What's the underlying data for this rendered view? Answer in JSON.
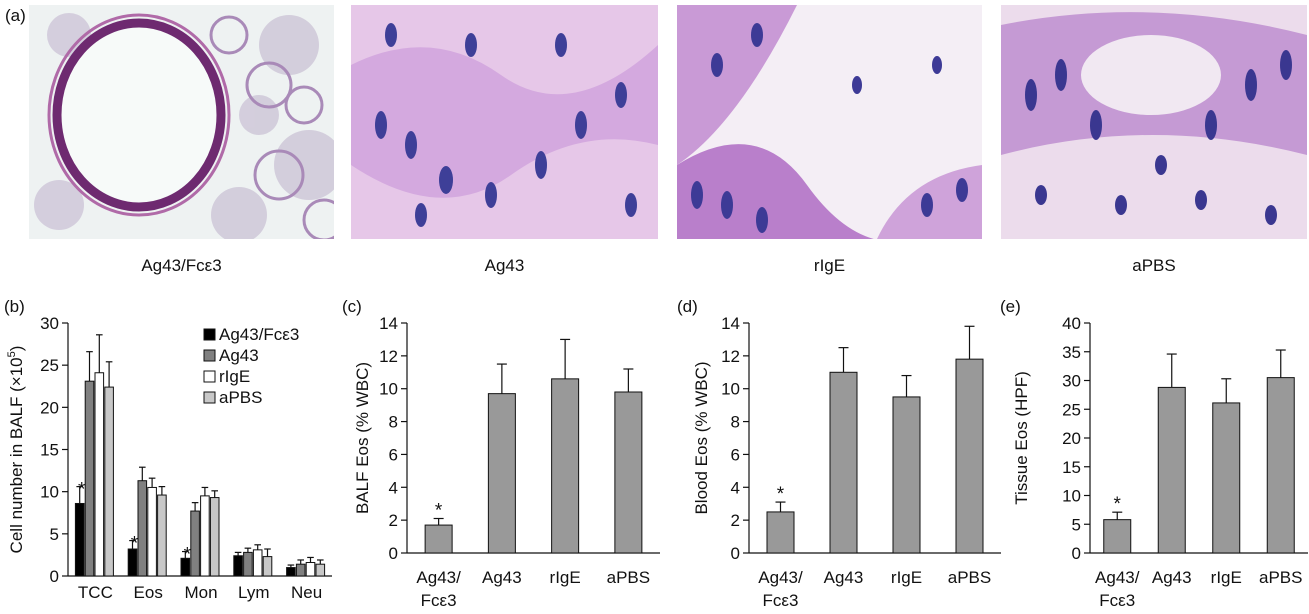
{
  "panel_labels": {
    "a": "(a)",
    "b": "(b)",
    "c": "(c)",
    "d": "(d)",
    "e": "(e)"
  },
  "micrographs": [
    {
      "caption": "Ag43/Fcε3",
      "tissue_color": "#7a2f78",
      "bg_color": "#eef2f2"
    },
    {
      "caption": "Ag43",
      "tissue_color": "#b27ac9",
      "bg_color": "#e6c7e8"
    },
    {
      "caption": "rIgE",
      "tissue_color": "#ae79c7",
      "bg_color": "#f4eef5"
    },
    {
      "caption": "aPBS",
      "tissue_color": "#7c58b8",
      "bg_color": "#ecdcec"
    }
  ],
  "chart_data": [
    {
      "panel": "(b)",
      "type": "bar",
      "ylabel_main": "Cell number in BALF (×10",
      "ylabel_sup": "5",
      "ylabel_end": ")",
      "ylim": [
        0,
        30
      ],
      "yticks": [
        0,
        5,
        10,
        15,
        20,
        25,
        30
      ],
      "categories": [
        "TCC",
        "Eos",
        "Mon",
        "Lym",
        "Neu"
      ],
      "legend_position": "top-right",
      "series": [
        {
          "name": "Ag43/Fcε3",
          "color": "#000000",
          "values": [
            8.6,
            3.2,
            2.1,
            2.4,
            1.0
          ],
          "errors": [
            2.0,
            1.0,
            0.8,
            0.4,
            0.3
          ]
        },
        {
          "name": "Ag43",
          "color": "#808080",
          "values": [
            23.1,
            11.3,
            7.7,
            2.8,
            1.4
          ],
          "errors": [
            3.5,
            1.6,
            1.0,
            0.5,
            0.5
          ]
        },
        {
          "name": "rIgE",
          "color": "#ffffff",
          "values": [
            24.1,
            10.5,
            9.5,
            3.1,
            1.6
          ],
          "errors": [
            4.5,
            1.1,
            1.0,
            0.6,
            0.6
          ]
        },
        {
          "name": "aPBS",
          "color": "#c8c8c8",
          "values": [
            22.4,
            9.6,
            9.3,
            2.3,
            1.4
          ],
          "errors": [
            3.0,
            1.0,
            0.8,
            0.9,
            0.5
          ]
        }
      ],
      "annotations": [
        {
          "category": "TCC",
          "series": "Ag43/Fcε3",
          "text": "*"
        },
        {
          "category": "Eos",
          "series": "Ag43/Fcε3",
          "text": "*"
        },
        {
          "category": "Mon",
          "series": "Ag43/Fcε3",
          "text": "*"
        }
      ]
    },
    {
      "panel": "(c)",
      "type": "bar",
      "ylabel": "BALF Eos (% WBC)",
      "ylim": [
        0,
        14
      ],
      "yticks": [
        0,
        2,
        4,
        6,
        8,
        10,
        12,
        14
      ],
      "categories": [
        "Ag43/\nFcε3",
        "Ag43",
        "rIgE",
        "aPBS"
      ],
      "values": [
        1.7,
        9.7,
        10.6,
        9.8
      ],
      "errors": [
        0.4,
        1.8,
        2.4,
        1.4
      ],
      "bar_color": "#999999",
      "annotations": [
        {
          "category": 0,
          "text": "*"
        }
      ]
    },
    {
      "panel": "(d)",
      "type": "bar",
      "ylabel": "Blood Eos (% WBC)",
      "ylim": [
        0,
        14
      ],
      "yticks": [
        0,
        2,
        4,
        6,
        8,
        10,
        12,
        14
      ],
      "categories": [
        "Ag43/\nFcε3",
        "Ag43",
        "rIgE",
        "aPBS"
      ],
      "values": [
        2.5,
        11.0,
        9.5,
        11.8
      ],
      "errors": [
        0.6,
        1.5,
        1.3,
        2.0
      ],
      "bar_color": "#999999",
      "annotations": [
        {
          "category": 0,
          "text": "*"
        }
      ]
    },
    {
      "panel": "(e)",
      "type": "bar",
      "ylabel": "Tissue Eos (HPF)",
      "ylim": [
        0,
        40
      ],
      "yticks": [
        0,
        5,
        10,
        15,
        20,
        25,
        30,
        35,
        40
      ],
      "categories": [
        "Ag43/\nFcε3",
        "Ag43",
        "rIgE",
        "aPBS"
      ],
      "values": [
        5.8,
        28.8,
        26.1,
        30.5
      ],
      "errors": [
        1.3,
        5.8,
        4.2,
        4.8
      ],
      "bar_color": "#999999",
      "annotations": [
        {
          "category": 0,
          "text": "*"
        }
      ]
    }
  ]
}
